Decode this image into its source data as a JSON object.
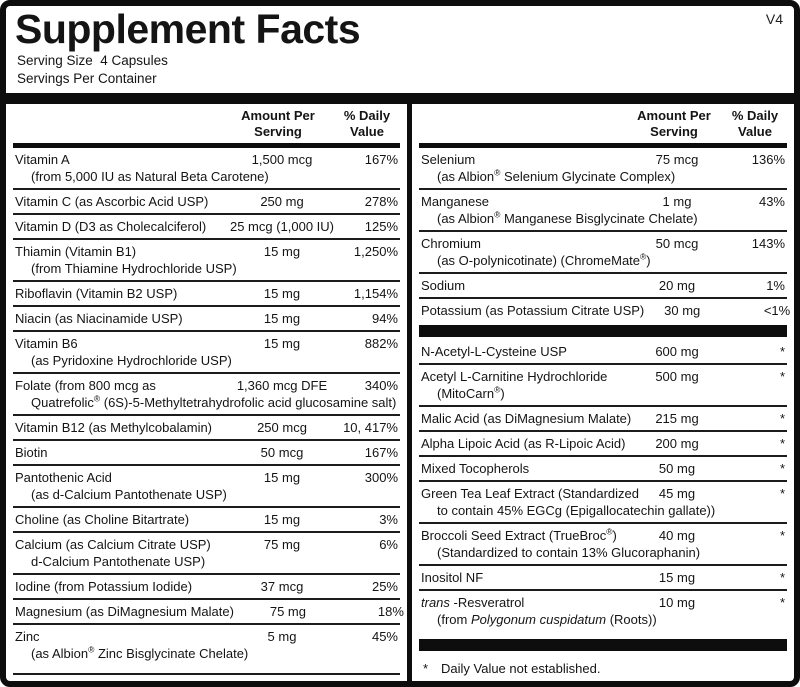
{
  "version_tag": "V4",
  "title": "Supplement Facts",
  "serving": {
    "size_line": "Serving Size  4 Capsules",
    "container_line": "Servings Per Container"
  },
  "table": {
    "amount_header": "Amount Per\nServing",
    "dv_header": "% Daily\nValue"
  },
  "columns": [
    {
      "rows": [
        {
          "type": "row",
          "name": [
            "Vitamin A"
          ],
          "sub": [
            "(from 5,000 IU as Natural Beta Carotene)"
          ],
          "amount": "1,500 mcg",
          "dv": "167%"
        },
        {
          "type": "row",
          "name": [
            "Vitamin C (as Ascorbic Acid USP)"
          ],
          "amount": "250 mg",
          "dv": "278%"
        },
        {
          "type": "row",
          "name": [
            "Vitamin D (D3 as Cholecalciferol)"
          ],
          "amount": "25 mcg (1,000 IU)",
          "dv": "125%"
        },
        {
          "type": "row",
          "name": [
            "Thiamin (Vitamin B1)"
          ],
          "sub": [
            "(from Thiamine Hydrochloride USP)"
          ],
          "amount": "15 mg",
          "dv": "1,250%"
        },
        {
          "type": "row",
          "name": [
            "Riboflavin (Vitamin B2 USP)"
          ],
          "amount": "15 mg",
          "dv": "1,154%"
        },
        {
          "type": "row",
          "name": [
            "Niacin (as Niacinamide USP)"
          ],
          "amount": "15 mg",
          "dv": "94%"
        },
        {
          "type": "row",
          "name": [
            "Vitamin B6"
          ],
          "sub": [
            "(as Pyridoxine Hydrochloride USP)"
          ],
          "amount": "15 mg",
          "dv": "882%"
        },
        {
          "type": "row",
          "name": [
            "Folate (from 800 mcg as"
          ],
          "sub": [
            "Quatrefolic",
            {
              "sup": "®"
            },
            " (6S)-5-Methyltetrahydrofolic acid glucosamine salt)"
          ],
          "amount": "1,360 mcg DFE",
          "dv": "340%"
        },
        {
          "type": "row",
          "name": [
            "Vitamin B12 (as Methylcobalamin)"
          ],
          "amount": "250 mcg",
          "dv": "10, 417%"
        },
        {
          "type": "row",
          "name": [
            "Biotin"
          ],
          "amount": "50 mcg",
          "dv": "167%"
        },
        {
          "type": "row",
          "name": [
            "Pantothenic Acid"
          ],
          "sub": [
            "(as d-Calcium Pantothenate USP)"
          ],
          "amount": "15 mg",
          "dv": "300%"
        },
        {
          "type": "row",
          "name": [
            "Choline (as Choline Bitartrate)"
          ],
          "amount": "15 mg",
          "dv": "3%"
        },
        {
          "type": "row",
          "name": [
            "Calcium (as Calcium Citrate USP)"
          ],
          "sub": [
            "d-Calcium Pantothenate USP)"
          ],
          "amount": "75 mg",
          "dv": "6%"
        },
        {
          "type": "row",
          "name": [
            "Iodine (from Potassium Iodide)"
          ],
          "amount": "37 mcg",
          "dv": "25%"
        },
        {
          "type": "row",
          "name": [
            "Magnesium (as DiMagnesium Malate)"
          ],
          "amount": "75 mg",
          "dv": "18%"
        },
        {
          "type": "row",
          "name": [
            "Zinc"
          ],
          "sub": [
            "(as Albion",
            {
              "sup": "®"
            },
            " Zinc Bisglycinate Chelate)"
          ],
          "amount": "5 mg",
          "dv": "45%"
        }
      ]
    },
    {
      "rows": [
        {
          "type": "row",
          "name": [
            "Selenium"
          ],
          "sub": [
            "(as Albion",
            {
              "sup": "®"
            },
            " Selenium Glycinate Complex)"
          ],
          "amount": "75 mcg",
          "dv": "136%"
        },
        {
          "type": "row",
          "name": [
            "Manganese"
          ],
          "sub": [
            "(as Albion",
            {
              "sup": "®"
            },
            " Manganese Bisglycinate Chelate)"
          ],
          "amount": "1 mg",
          "dv": "43%"
        },
        {
          "type": "row",
          "name": [
            "Chromium"
          ],
          "sub": [
            "(as O-polynicotinate) (ChromeMate",
            {
              "sup": "®"
            },
            ")"
          ],
          "amount": "50 mcg",
          "dv": "143%"
        },
        {
          "type": "row",
          "name": [
            "Sodium"
          ],
          "amount": "20 mg",
          "dv": "1%"
        },
        {
          "type": "row",
          "name": [
            "Potassium (as Potassium Citrate USP)"
          ],
          "amount": "30 mg",
          "dv": "<1%"
        },
        {
          "type": "bar"
        },
        {
          "type": "row",
          "name": [
            "N-Acetyl-L-Cysteine USP"
          ],
          "amount": "600 mg",
          "dv": "*"
        },
        {
          "type": "row",
          "name": [
            "Acetyl L-Carnitine Hydrochloride"
          ],
          "sub": [
            "(MitoCarn",
            {
              "sup": "®"
            },
            ")"
          ],
          "amount": "500 mg",
          "dv": "*"
        },
        {
          "type": "row",
          "name": [
            "Malic Acid (as DiMagnesium Malate)"
          ],
          "amount": "215 mg",
          "dv": "*"
        },
        {
          "type": "row",
          "name": [
            "Alpha Lipoic Acid (as R-Lipoic Acid)"
          ],
          "amount": "200 mg",
          "dv": "*"
        },
        {
          "type": "row",
          "name": [
            "Mixed Tocopherols"
          ],
          "amount": "50 mg",
          "dv": "*"
        },
        {
          "type": "row",
          "name": [
            "Green Tea Leaf Extract (Standardized"
          ],
          "sub": [
            "to contain 45% EGCg (Epigallocatechin gallate))"
          ],
          "amount": "45 mg",
          "dv": "*"
        },
        {
          "type": "row",
          "name": [
            "Broccoli Seed Extract (TrueBroc",
            {
              "sup": "®"
            },
            ")"
          ],
          "sub": [
            "(Standardized to contain 13% Glucoraphanin)"
          ],
          "amount": "40 mg",
          "dv": "*"
        },
        {
          "type": "row",
          "name": [
            "Inositol NF"
          ],
          "amount": "15 mg",
          "dv": "*"
        },
        {
          "type": "row",
          "name": [
            {
              "i": "trans"
            },
            " -Resveratrol"
          ],
          "sub": [
            "(from ",
            {
              "i": "Polygonum cuspidatum"
            },
            " (Roots))"
          ],
          "amount": "10 mg",
          "dv": "*"
        },
        {
          "type": "bar",
          "push": true
        },
        {
          "type": "note",
          "symbol": "*",
          "text": "Daily Value not established."
        }
      ]
    }
  ]
}
